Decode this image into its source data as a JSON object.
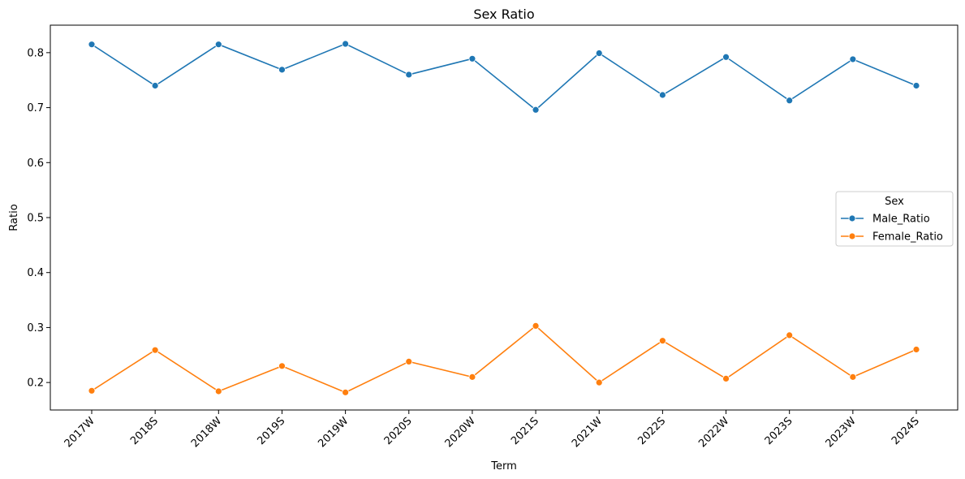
{
  "chart_data": {
    "type": "line",
    "title": "Sex Ratio",
    "xlabel": "Term",
    "ylabel": "Ratio",
    "categories": [
      "2017W",
      "2018S",
      "2018W",
      "2019S",
      "2019W",
      "2020S",
      "2020W",
      "2021S",
      "2021W",
      "2022S",
      "2022W",
      "2023S",
      "2023W",
      "2024S"
    ],
    "ylim": [
      0.15,
      0.85
    ],
    "yticks": [
      "0.2",
      "0.3",
      "0.4",
      "0.5",
      "0.6",
      "0.7",
      "0.8"
    ],
    "grid": false,
    "legend": {
      "title": "Sex",
      "placement": "center-right"
    },
    "series": [
      {
        "name": "Male_Ratio",
        "color": "#1f77b4",
        "values": [
          0.815,
          0.74,
          0.815,
          0.769,
          0.816,
          0.76,
          0.789,
          0.696,
          0.799,
          0.723,
          0.792,
          0.713,
          0.788,
          0.74
        ]
      },
      {
        "name": "Female_Ratio",
        "color": "#ff7f0e",
        "values": [
          0.185,
          0.259,
          0.184,
          0.23,
          0.182,
          0.238,
          0.21,
          0.303,
          0.2,
          0.276,
          0.207,
          0.286,
          0.21,
          0.26
        ]
      }
    ]
  }
}
